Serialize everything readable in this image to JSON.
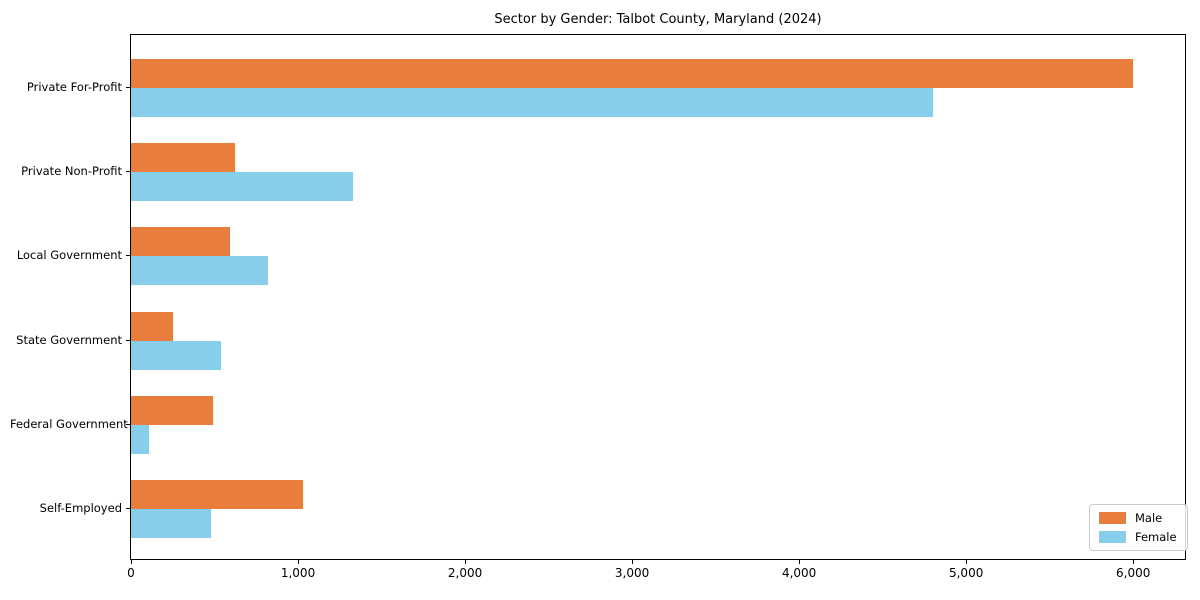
{
  "chart_data": {
    "type": "bar",
    "orientation": "horizontal",
    "title": "Sector by Gender: Talbot County, Maryland (2024)",
    "categories": [
      "Private For-Profit",
      "Private Non-Profit",
      "Local Government",
      "State Government",
      "Federal Government",
      "Self-Employed"
    ],
    "series": [
      {
        "name": "Male",
        "color": "#e87d3e",
        "values": [
          6000,
          620,
          590,
          250,
          490,
          1030
        ]
      },
      {
        "name": "Female",
        "color": "#87ceeb",
        "values": [
          4800,
          1330,
          820,
          540,
          110,
          480
        ]
      }
    ],
    "xlabel": "",
    "ylabel": "",
    "xlim": [
      0,
      6310
    ],
    "xticks": [
      0,
      1000,
      2000,
      3000,
      4000,
      5000,
      6000
    ],
    "xtick_labels": [
      "0",
      "1,000",
      "2,000",
      "3,000",
      "4,000",
      "5,000",
      "6,000"
    ],
    "grid": false,
    "legend": {
      "position": "lower right",
      "entries": [
        "Male",
        "Female"
      ]
    }
  }
}
